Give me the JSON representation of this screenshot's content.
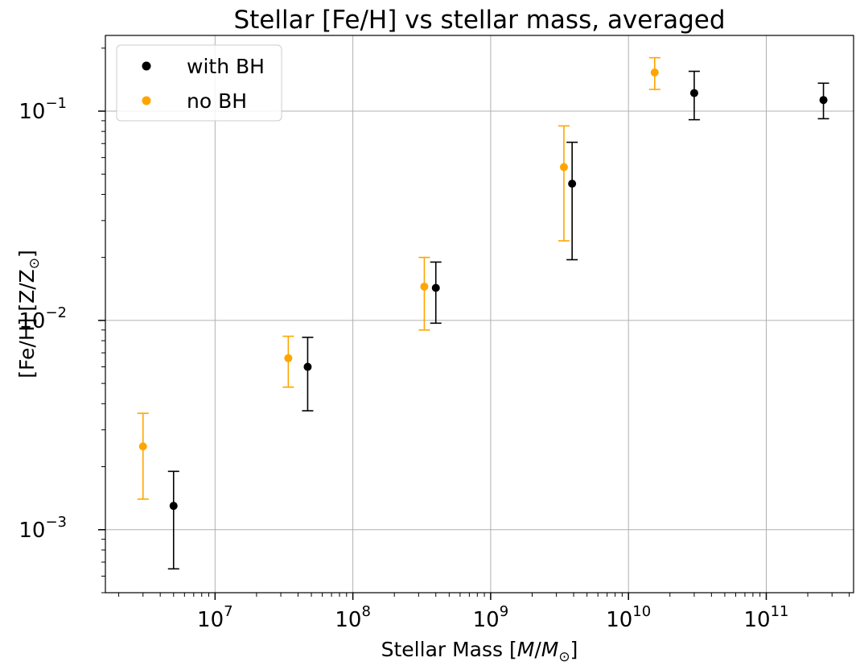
{
  "chart_data": {
    "type": "scatter",
    "title": "Stellar [Fe/H] vs stellar mass, averaged",
    "xlabel": {
      "pre": "Stellar Mass [",
      "var1": "M",
      "slash": "/",
      "var2": "M",
      "sub": "⊙",
      "post": "]"
    },
    "ylabel": {
      "pre": "[Fe/H] [Z/Z",
      "sub": "⊙",
      "post": "]"
    },
    "x_scale": "log",
    "y_scale": "log",
    "xlim": [
      1600000,
      430000000000
    ],
    "ylim": [
      0.0005,
      0.23
    ],
    "x_ticks": [
      {
        "value": 10000000,
        "base": "10",
        "exp": "7"
      },
      {
        "value": 100000000,
        "base": "10",
        "exp": "8"
      },
      {
        "value": 1000000000,
        "base": "10",
        "exp": "9"
      },
      {
        "value": 10000000000,
        "base": "10",
        "exp": "10"
      },
      {
        "value": 100000000000,
        "base": "10",
        "exp": "11"
      }
    ],
    "y_ticks": [
      {
        "value": 0.001,
        "base": "10",
        "exp": "−3"
      },
      {
        "value": 0.01,
        "base": "10",
        "exp": "−2"
      },
      {
        "value": 0.1,
        "base": "10",
        "exp": "−1"
      }
    ],
    "grid": true,
    "legend_position": "top-left",
    "series": [
      {
        "name": "with BH",
        "color": "#000000",
        "points": [
          {
            "x": 5000000,
            "y": 0.0013,
            "ylo": 0.00065,
            "yhi": 0.0019
          },
          {
            "x": 47000000,
            "y": 0.006,
            "ylo": 0.0037,
            "yhi": 0.0083
          },
          {
            "x": 400000000,
            "y": 0.0143,
            "ylo": 0.0097,
            "yhi": 0.019
          },
          {
            "x": 3900000000,
            "y": 0.045,
            "ylo": 0.0195,
            "yhi": 0.071
          },
          {
            "x": 30000000000,
            "y": 0.122,
            "ylo": 0.091,
            "yhi": 0.155
          },
          {
            "x": 260000000000,
            "y": 0.113,
            "ylo": 0.092,
            "yhi": 0.136
          }
        ]
      },
      {
        "name": "no BH",
        "color": "#FFA500",
        "points": [
          {
            "x": 3000000,
            "y": 0.0025,
            "ylo": 0.0014,
            "yhi": 0.0036
          },
          {
            "x": 34000000,
            "y": 0.0066,
            "ylo": 0.0048,
            "yhi": 0.0084
          },
          {
            "x": 330000000,
            "y": 0.0145,
            "ylo": 0.009,
            "yhi": 0.02
          },
          {
            "x": 3400000000,
            "y": 0.054,
            "ylo": 0.024,
            "yhi": 0.085
          },
          {
            "x": 15500000000,
            "y": 0.153,
            "ylo": 0.127,
            "yhi": 0.18
          }
        ]
      }
    ]
  }
}
